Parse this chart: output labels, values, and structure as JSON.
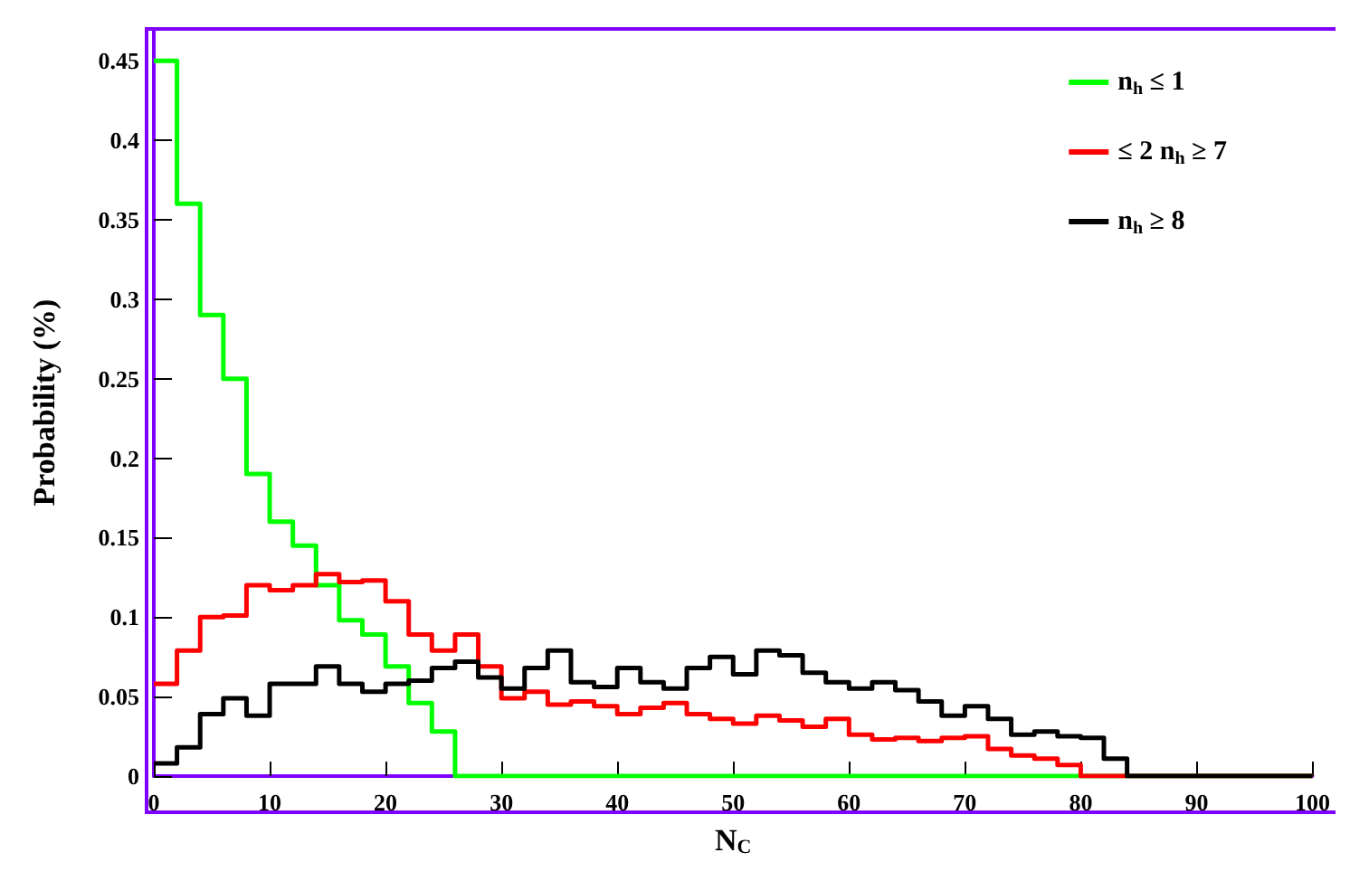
{
  "chart_data": {
    "type": "histogram",
    "xlabel": "N$_{C}$",
    "ylabel": "Probability (%)",
    "bins": [
      0,
      2,
      4,
      6,
      8,
      10,
      12,
      14,
      16,
      18,
      20,
      22,
      24,
      26,
      28,
      30,
      32,
      34,
      36,
      38,
      40,
      42,
      44,
      46,
      48,
      50,
      52,
      54,
      56,
      58,
      60,
      62,
      64,
      66,
      68,
      70,
      72,
      74,
      76,
      78,
      80,
      82,
      84,
      86,
      88,
      90,
      92,
      94,
      96,
      98,
      100
    ],
    "series": [
      {
        "name": "n$_{h}$ ≤ 1",
        "color": "#00ff00",
        "values": [
          0.45,
          0.36,
          0.29,
          0.25,
          0.19,
          0.16,
          0.145,
          0.12,
          0.098,
          0.089,
          0.069,
          0.046,
          0.028,
          0,
          0,
          0,
          0,
          0,
          0,
          0,
          0,
          0,
          0,
          0,
          0,
          0,
          0,
          0,
          0,
          0,
          0,
          0,
          0,
          0,
          0,
          0,
          0,
          0,
          0,
          0,
          0,
          0,
          0,
          0,
          0,
          0,
          0,
          0,
          0,
          0
        ]
      },
      {
        "name": "≤ 2 n$_{h}$ ≥ 7",
        "color": "#ff0000",
        "values": [
          0.058,
          0.079,
          0.1,
          0.101,
          0.12,
          0.117,
          0.12,
          0.127,
          0.122,
          0.123,
          0.11,
          0.089,
          0.079,
          0.089,
          0.069,
          0.049,
          0.053,
          0.045,
          0.047,
          0.044,
          0.039,
          0.043,
          0.046,
          0.039,
          0.036,
          0.033,
          0.038,
          0.035,
          0.031,
          0.036,
          0.026,
          0.023,
          0.024,
          0.022,
          0.024,
          0.025,
          0.017,
          0.013,
          0.011,
          0.007,
          0,
          0,
          0,
          0,
          0,
          0,
          0,
          0,
          0,
          0
        ]
      },
      {
        "name": "n$_{h}$ ≥ 8",
        "color": "#000000",
        "values": [
          0.008,
          0.018,
          0.039,
          0.049,
          0.038,
          0.058,
          0.058,
          0.069,
          0.058,
          0.053,
          0.058,
          0.06,
          0.068,
          0.072,
          0.062,
          0.055,
          0.068,
          0.079,
          0.059,
          0.056,
          0.068,
          0.059,
          0.055,
          0.068,
          0.075,
          0.064,
          0.079,
          0.076,
          0.065,
          0.059,
          0.055,
          0.059,
          0.054,
          0.047,
          0.038,
          0.044,
          0.036,
          0.026,
          0.028,
          0.025,
          0.024,
          0.011,
          0,
          0,
          0,
          0,
          0,
          0,
          0,
          0
        ]
      }
    ],
    "xlim": [
      0,
      100
    ],
    "xticks": [
      0,
      10,
      20,
      30,
      40,
      50,
      60,
      70,
      80,
      90,
      100
    ],
    "ylim": [
      0,
      0.47
    ],
    "yticks": [
      0,
      0.05,
      0.1,
      0.15,
      0.2,
      0.25,
      0.3,
      0.35,
      0.4,
      0.45
    ],
    "grid": false,
    "legend": "top right"
  }
}
